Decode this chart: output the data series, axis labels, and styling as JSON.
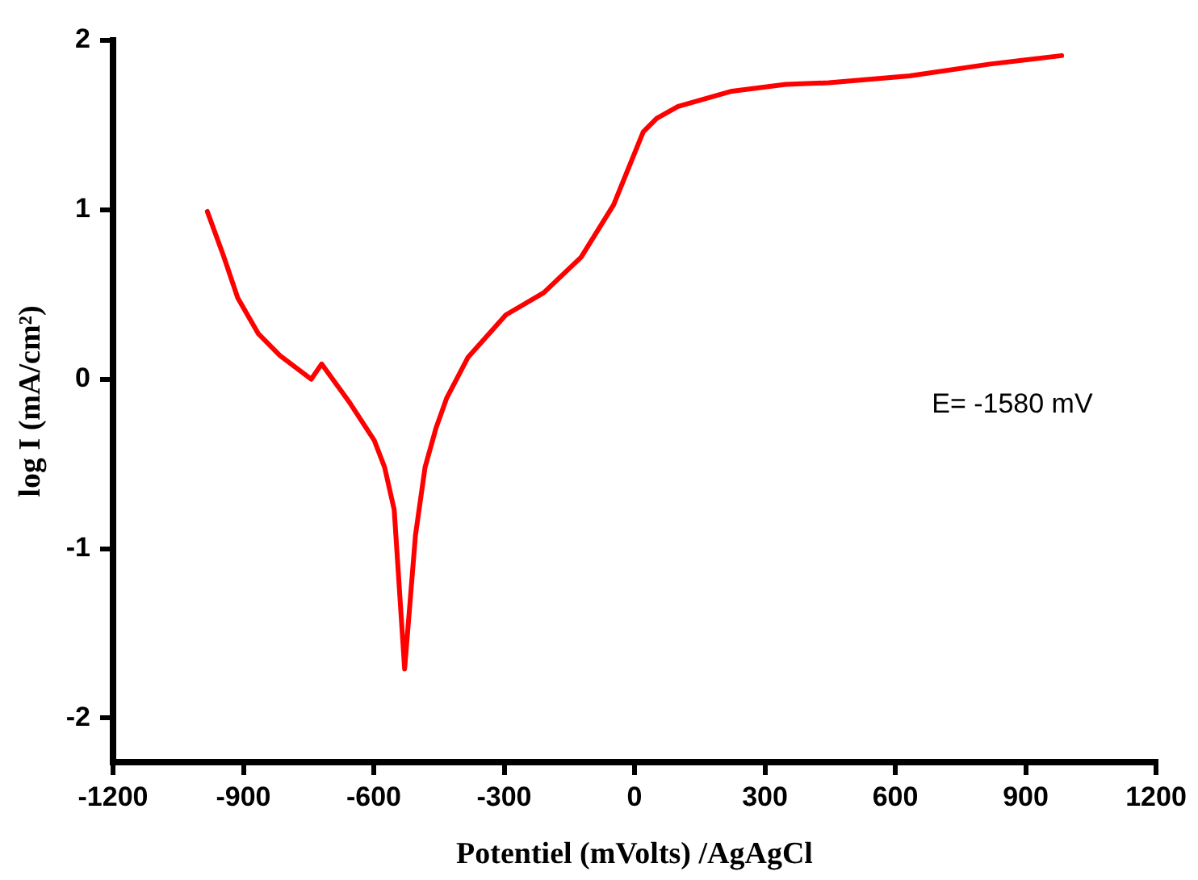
{
  "chart_data": {
    "type": "line",
    "xlabel": "Potentiel (mVolts) /AgAgCl",
    "ylabel": "log I (mA/cm²)",
    "x": [
      -983,
      -946,
      -913,
      -866,
      -816,
      -744,
      -720,
      -655,
      -599,
      -575,
      -553,
      -529,
      -504,
      -482,
      -457,
      -432,
      -383,
      -296,
      -209,
      -123,
      -48,
      20,
      51,
      100,
      224,
      348,
      447,
      633,
      818,
      983
    ],
    "series": [
      {
        "color": "#ff0000",
        "values": [
          0.99,
          0.73,
          0.48,
          0.27,
          0.14,
          0.0,
          0.09,
          -0.14,
          -0.36,
          -0.52,
          -0.77,
          -1.71,
          -0.92,
          -0.52,
          -0.29,
          -0.11,
          0.13,
          0.38,
          0.51,
          0.72,
          1.03,
          1.46,
          1.54,
          1.61,
          1.7,
          1.74,
          1.75,
          1.79,
          1.86,
          1.91
        ]
      }
    ],
    "xlim": [
      -1200,
      1200
    ],
    "xticks": [
      -1200,
      -900,
      -600,
      -300,
      0,
      300,
      600,
      900,
      1200
    ],
    "ylim": [
      -2.26,
      2
    ],
    "yticks": [
      -2,
      -1,
      0,
      1,
      2
    ],
    "annotations": [
      "E= -1580 mV"
    ],
    "grid": false,
    "legend": false,
    "marker": "none",
    "line_style": "solid"
  }
}
